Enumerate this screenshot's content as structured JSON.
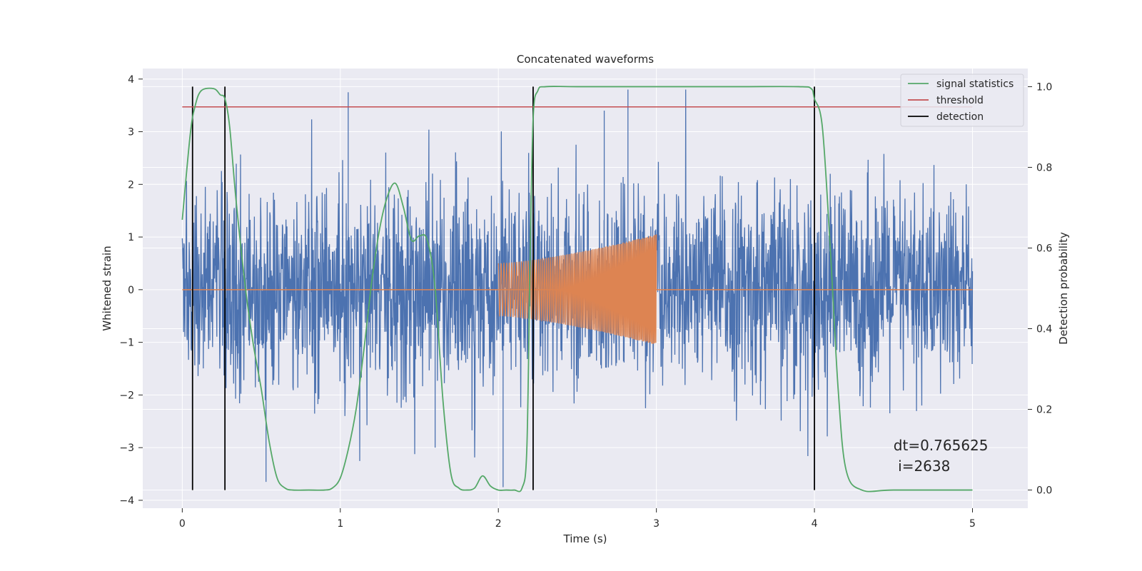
{
  "chart_data": {
    "type": "line",
    "title": "Concatenated waveforms",
    "xlabel": "Time (s)",
    "ylabel": "Whitened strain",
    "y2label": "Detection probability",
    "xlim": [
      -0.25,
      5.35
    ],
    "ylim": [
      -4.15,
      4.2
    ],
    "y2lim": [
      -0.045,
      1.045
    ],
    "xticks": [
      "0",
      "1",
      "2",
      "3",
      "4",
      "5"
    ],
    "yticks": [
      "−4",
      "−3",
      "−2",
      "−1",
      "0",
      "1",
      "2",
      "3",
      "4"
    ],
    "y2ticks": [
      "0.0",
      "0.2",
      "0.4",
      "0.6",
      "0.8",
      "1.0"
    ],
    "grid": true,
    "legend_placement": "top-right",
    "legend": [
      {
        "label": "signal statistics",
        "color": "#55a868"
      },
      {
        "label": "threshold",
        "color": "#c44e52"
      },
      {
        "label": "detection",
        "color": "#000000"
      }
    ],
    "colors": {
      "noise": "#4c72b0",
      "injected_signal": "#dd8452",
      "signal_statistics": "#55a868",
      "threshold": "#c44e52",
      "detection": "#000000",
      "plot_background": "#eaeaf2",
      "grid": "#ffffff"
    },
    "series": [
      {
        "name": "signal statistics",
        "axis": "right",
        "x": [
          0.0,
          0.05,
          0.08,
          0.12,
          0.2,
          0.24,
          0.27,
          0.3,
          0.34,
          0.4,
          0.45,
          0.5,
          0.55,
          0.6,
          0.65,
          0.7,
          0.8,
          0.9,
          0.95,
          1.0,
          1.05,
          1.1,
          1.15,
          1.2,
          1.25,
          1.3,
          1.35,
          1.4,
          1.45,
          1.5,
          1.55,
          1.6,
          1.65,
          1.7,
          1.75,
          1.8,
          1.85,
          1.9,
          1.95,
          2.0,
          2.05,
          2.1,
          2.15,
          2.18,
          2.2,
          2.22,
          2.25,
          2.3,
          2.5,
          3.0,
          3.5,
          3.9,
          3.98,
          4.0,
          4.05,
          4.1,
          4.15,
          4.2,
          4.3,
          4.5,
          5.0
        ],
        "values": [
          0.67,
          0.88,
          0.95,
          0.99,
          0.995,
          0.98,
          0.97,
          0.9,
          0.72,
          0.5,
          0.36,
          0.25,
          0.12,
          0.03,
          0.005,
          0.0,
          0.0,
          0.0,
          0.005,
          0.03,
          0.1,
          0.2,
          0.35,
          0.52,
          0.65,
          0.73,
          0.76,
          0.7,
          0.62,
          0.63,
          0.62,
          0.5,
          0.22,
          0.04,
          0.005,
          0.0,
          0.005,
          0.035,
          0.01,
          0.0,
          0.0,
          0.0,
          0.005,
          0.1,
          0.55,
          0.92,
          0.99,
          1.0,
          1.0,
          1.0,
          1.0,
          1.0,
          0.995,
          0.97,
          0.9,
          0.6,
          0.25,
          0.05,
          0.0,
          0.0,
          0.0
        ]
      },
      {
        "name": "threshold",
        "axis": "right",
        "x": [
          0.0,
          5.0
        ],
        "values": [
          0.95,
          0.95
        ]
      },
      {
        "name": "detection",
        "axis": "right",
        "type": "vlines",
        "x": [
          0.065,
          0.27,
          2.22,
          4.0
        ],
        "ymin": 0.0,
        "ymax": 1.0
      },
      {
        "name": "",
        "axis": "left",
        "type": "noise",
        "x_range": [
          0.0,
          5.0
        ],
        "y_min": -3.75,
        "y_max": 3.8
      },
      {
        "name": "",
        "axis": "left",
        "type": "chirp",
        "baseline_x": [
          0.0,
          5.0
        ],
        "x_range": [
          2.0,
          3.0
        ],
        "amplitude_start": 0.5,
        "amplitude_end": 1.05
      }
    ],
    "annotation": {
      "line1": "dt=0.765625",
      "line2": " i=2638",
      "x": 4.5,
      "y": -3.05
    }
  }
}
